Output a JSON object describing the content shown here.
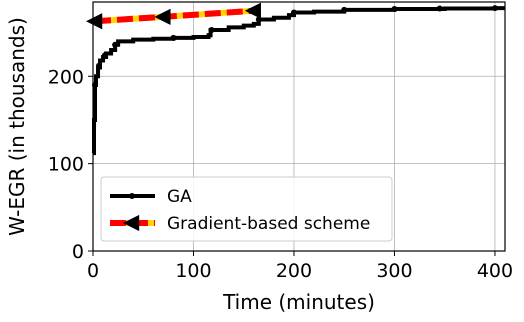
{
  "chart_data": {
    "type": "line",
    "title": "",
    "xlabel": "Time (minutes)",
    "ylabel": "W-EGR (in thousands)",
    "xlim": [
      0,
      410
    ],
    "ylim": [
      0,
      285
    ],
    "xticks": [
      0,
      100,
      200,
      300,
      400
    ],
    "yticks": [
      0,
      100,
      200
    ],
    "xtick_labels": [
      "0",
      "100",
      "200",
      "300",
      "400"
    ],
    "ytick_labels": [
      "0",
      "100",
      "200"
    ],
    "grid": true,
    "legend_position": "lower-left",
    "series": [
      {
        "name": "GA",
        "color": "#000000",
        "line_style": "solid",
        "marker": "dot",
        "points": [
          [
            0,
            112
          ],
          [
            1,
            150
          ],
          [
            2,
            190
          ],
          [
            3,
            200
          ],
          [
            5,
            210
          ],
          [
            7,
            218
          ],
          [
            10,
            222
          ],
          [
            13,
            226
          ],
          [
            18,
            230
          ],
          [
            22,
            236
          ],
          [
            25,
            240
          ],
          [
            40,
            242
          ],
          [
            60,
            243
          ],
          [
            80,
            244
          ],
          [
            100,
            245
          ],
          [
            115,
            247
          ],
          [
            117,
            253
          ],
          [
            135,
            256
          ],
          [
            150,
            258
          ],
          [
            160,
            260
          ],
          [
            165,
            265
          ],
          [
            180,
            267
          ],
          [
            195,
            270
          ],
          [
            200,
            273
          ],
          [
            220,
            274
          ],
          [
            250,
            276
          ],
          [
            300,
            277
          ],
          [
            350,
            277.5
          ],
          [
            400,
            278
          ],
          [
            410,
            278
          ]
        ],
        "marker_points": [
          [
            2,
            190
          ],
          [
            6,
            212
          ],
          [
            12,
            224
          ],
          [
            22,
            236
          ],
          [
            80,
            244
          ],
          [
            118,
            253
          ],
          [
            165,
            265
          ],
          [
            200,
            273
          ],
          [
            250,
            276
          ],
          [
            300,
            277
          ],
          [
            345,
            277.5
          ],
          [
            400,
            278
          ]
        ]
      },
      {
        "name": "Gradient-based scheme",
        "color": "#ff0000",
        "dash_color": "#ffd700",
        "line_style": "dashed",
        "marker": "left-triangle",
        "points": [
          [
            2,
            263
          ],
          [
            70,
            268
          ],
          [
            160,
            275
          ]
        ],
        "marker_points": [
          [
            2,
            263
          ],
          [
            70,
            268
          ],
          [
            160,
            275
          ]
        ]
      }
    ]
  }
}
